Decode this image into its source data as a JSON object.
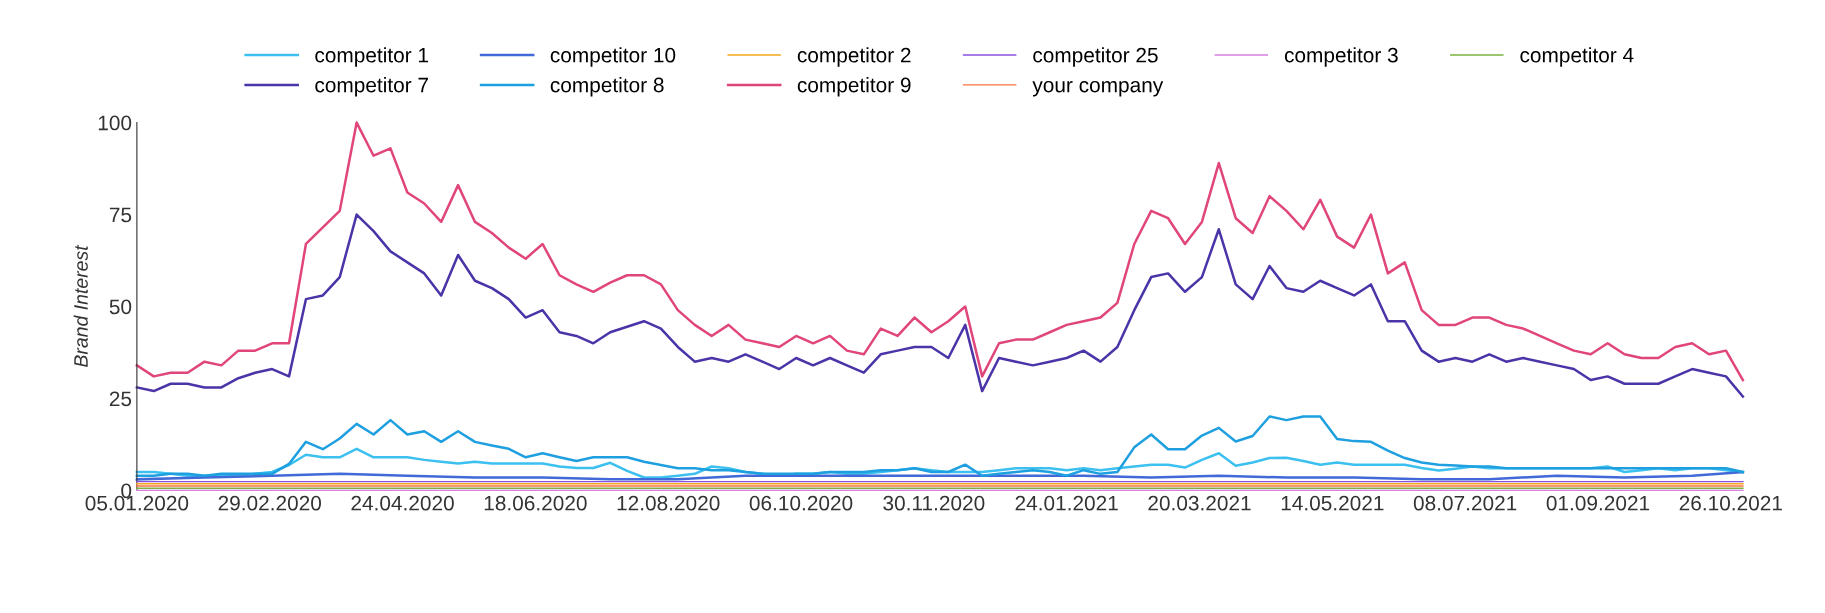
{
  "chart_data": {
    "type": "line",
    "ylabel": "Brand Interest",
    "x": [
      "2020-01-05",
      "2020-01-12",
      "2020-01-19",
      "2020-01-26",
      "2020-02-02",
      "2020-02-09",
      "2020-02-16",
      "2020-02-23",
      "2020-03-01",
      "2020-03-08",
      "2020-03-15",
      "2020-03-22",
      "2020-03-29",
      "2020-04-05",
      "2020-04-12",
      "2020-04-19",
      "2020-04-26",
      "2020-05-03",
      "2020-05-10",
      "2020-05-17",
      "2020-05-24",
      "2020-05-31",
      "2020-06-07",
      "2020-06-14",
      "2020-06-21",
      "2020-06-28",
      "2020-07-05",
      "2020-07-12",
      "2020-07-19",
      "2020-07-26",
      "2020-08-02",
      "2020-08-09",
      "2020-08-16",
      "2020-08-23",
      "2020-08-30",
      "2020-09-06",
      "2020-09-13",
      "2020-09-20",
      "2020-09-27",
      "2020-10-04",
      "2020-10-11",
      "2020-10-18",
      "2020-10-25",
      "2020-11-01",
      "2020-11-08",
      "2020-11-15",
      "2020-11-22",
      "2020-11-29",
      "2020-12-06",
      "2020-12-13",
      "2020-12-20",
      "2020-12-27",
      "2021-01-03",
      "2021-01-10",
      "2021-01-17",
      "2021-01-24",
      "2021-01-31",
      "2021-02-07",
      "2021-02-14",
      "2021-02-21",
      "2021-02-28",
      "2021-03-07",
      "2021-03-14",
      "2021-03-21",
      "2021-03-28",
      "2021-04-04",
      "2021-04-11",
      "2021-04-18",
      "2021-04-25",
      "2021-05-02",
      "2021-05-09",
      "2021-05-16",
      "2021-05-23",
      "2021-05-30",
      "2021-06-06",
      "2021-06-13",
      "2021-06-20",
      "2021-06-27",
      "2021-07-04",
      "2021-07-11",
      "2021-07-18",
      "2021-07-25",
      "2021-08-01",
      "2021-08-08",
      "2021-08-15",
      "2021-08-22",
      "2021-08-29",
      "2021-09-05",
      "2021-09-12",
      "2021-09-19",
      "2021-09-26",
      "2021-10-03",
      "2021-10-10",
      "2021-10-17",
      "2021-10-24",
      "2021-10-31"
    ],
    "series": [
      {
        "name": "competitor 1",
        "color": "#3cc0ef",
        "values": [
          5,
          5,
          4.5,
          4,
          4,
          4,
          4,
          4.5,
          5,
          6.9,
          9.7,
          9,
          9,
          11.3,
          9,
          9,
          9,
          8.3,
          7.8,
          7.3,
          7.8,
          7.3,
          7.3,
          7.3,
          7.3,
          6.5,
          6.1,
          6.1,
          7.5,
          5.3,
          3.5,
          3.5,
          4,
          4.5,
          6.5,
          6,
          5,
          4.5,
          4,
          4.5,
          4.5,
          5,
          4.5,
          4.5,
          5,
          5.5,
          6,
          5.5,
          5,
          5,
          5,
          5.5,
          6,
          6,
          6,
          5.5,
          6,
          5.5,
          6,
          6.5,
          7,
          7,
          6.2,
          8.3,
          10.1,
          6.7,
          7.6,
          8.8,
          8.9,
          8,
          7,
          7.6,
          7,
          7,
          7,
          7,
          6.1,
          5.4,
          5.9,
          6.5,
          6,
          6,
          6,
          6,
          6,
          6,
          6,
          6.5,
          5,
          5.5,
          6,
          5.5,
          6,
          6,
          5.5,
          5
        ]
      },
      {
        "name": "competitor 10",
        "color": "#4169d8",
        "x": [
          "2020-01-05",
          "2020-02-02",
          "2020-03-01",
          "2020-03-29",
          "2020-04-26",
          "2020-05-24",
          "2020-06-21",
          "2020-07-19",
          "2020-08-16",
          "2020-09-13",
          "2020-10-11",
          "2020-11-08",
          "2020-12-06",
          "2021-01-03",
          "2021-01-31",
          "2021-02-28",
          "2021-03-28",
          "2021-04-25",
          "2021-05-23",
          "2021-06-20",
          "2021-07-18",
          "2021-08-15",
          "2021-09-12",
          "2021-10-10",
          "2021-10-31"
        ],
        "values": [
          3,
          3.5,
          4,
          4.5,
          4,
          3.5,
          3.5,
          3,
          3,
          4,
          4,
          4,
          4,
          4,
          4,
          3.5,
          4,
          3.5,
          3.5,
          3,
          3,
          4,
          3.5,
          4,
          5
        ]
      },
      {
        "name": "competitor 2",
        "color": "#f4a81d",
        "x": [
          "2020-01-05",
          "2020-02-02",
          "2020-03-01",
          "2020-03-29",
          "2020-04-26",
          "2020-05-24",
          "2020-06-21",
          "2020-07-19",
          "2020-08-16",
          "2020-09-13",
          "2020-10-11",
          "2020-11-08",
          "2020-12-06",
          "2021-01-03",
          "2021-01-31",
          "2021-02-28",
          "2021-03-28",
          "2021-04-25",
          "2021-05-23",
          "2021-06-20",
          "2021-07-18",
          "2021-08-15",
          "2021-09-12",
          "2021-10-10",
          "2021-10-31"
        ],
        "values": [
          1.8,
          1.8,
          1.8,
          1.8,
          1.8,
          1.8,
          1.8,
          1.8,
          1.8,
          1.8,
          1.8,
          1.8,
          1.8,
          1.8,
          1.8,
          1.8,
          1.8,
          1.8,
          1.8,
          1.8,
          1.8,
          1.8,
          1.8,
          1.8,
          1.8
        ]
      },
      {
        "name": "competitor 25",
        "color": "#8a4fe0",
        "x": [
          "2020-01-05",
          "2020-02-02",
          "2020-03-01",
          "2020-03-29",
          "2020-04-26",
          "2020-05-24",
          "2020-06-21",
          "2020-07-19",
          "2020-08-16",
          "2020-09-13",
          "2020-10-11",
          "2020-11-08",
          "2020-12-06",
          "2021-01-03",
          "2021-01-31",
          "2021-02-28",
          "2021-03-28",
          "2021-04-25",
          "2021-05-23",
          "2021-06-20",
          "2021-07-18",
          "2021-08-15",
          "2021-09-12",
          "2021-10-10",
          "2021-10-31"
        ],
        "values": [
          2.4,
          2.4,
          2.4,
          2.4,
          2.4,
          2.4,
          2.4,
          2.4,
          2.4,
          2.4,
          2.4,
          2.4,
          2.4,
          2.4,
          2.4,
          2.4,
          2.4,
          2.4,
          2.4,
          2.4,
          2.4,
          2.4,
          2.4,
          2.4,
          2.4
        ]
      },
      {
        "name": "competitor 3",
        "color": "#d77fe3",
        "x": [
          "2020-01-05",
          "2020-02-02",
          "2020-03-01",
          "2020-03-29",
          "2020-04-26",
          "2020-05-24",
          "2020-06-21",
          "2020-07-19",
          "2020-08-16",
          "2020-09-13",
          "2020-10-11",
          "2020-11-08",
          "2020-12-06",
          "2021-01-03",
          "2021-01-31",
          "2021-02-28",
          "2021-03-28",
          "2021-04-25",
          "2021-05-23",
          "2021-06-20",
          "2021-07-18",
          "2021-08-15",
          "2021-09-12",
          "2021-10-10",
          "2021-10-31"
        ],
        "values": [
          0,
          0,
          0,
          0,
          0,
          0,
          0,
          0,
          0,
          0,
          0,
          0,
          0,
          0,
          0,
          0,
          0,
          0,
          0,
          0,
          0,
          0,
          0,
          0,
          0
        ]
      },
      {
        "name": "competitor 4",
        "color": "#7cb342",
        "x": [
          "2020-01-05",
          "2020-02-02",
          "2020-03-01",
          "2020-03-29",
          "2020-04-26",
          "2020-05-24",
          "2020-06-21",
          "2020-07-19",
          "2020-08-16",
          "2020-09-13",
          "2020-10-11",
          "2020-11-08",
          "2020-12-06",
          "2021-01-03",
          "2021-01-31",
          "2021-02-28",
          "2021-03-28",
          "2021-04-25",
          "2021-05-23",
          "2021-06-20",
          "2021-07-18",
          "2021-08-15",
          "2021-09-12",
          "2021-10-10",
          "2021-10-31"
        ],
        "values": [
          0.6,
          0.6,
          0.6,
          0.6,
          0.6,
          0.6,
          0.6,
          0.6,
          0.6,
          0.6,
          0.6,
          0.6,
          0.6,
          0.6,
          0.6,
          0.6,
          0.6,
          0.6,
          0.6,
          0.6,
          0.6,
          0.6,
          0.6,
          0.6,
          0.6
        ]
      },
      {
        "name": "competitor 7",
        "color": "#4b33a8",
        "values": [
          28,
          27,
          29,
          29,
          28,
          28,
          30.5,
          32,
          33,
          31,
          52,
          53,
          58,
          75,
          70.5,
          65,
          62,
          59,
          53,
          64,
          57,
          55,
          52,
          47,
          49,
          43,
          42,
          40,
          43,
          44.5,
          46,
          44,
          39,
          35,
          36,
          35,
          37,
          35,
          33,
          36,
          34,
          36,
          34,
          32,
          37,
          38,
          39,
          39,
          36,
          45,
          27,
          36,
          35,
          34,
          35,
          36,
          38,
          35,
          39,
          49,
          58,
          59,
          54,
          58,
          71,
          56,
          52,
          61,
          55,
          54,
          57,
          55,
          53,
          56,
          46,
          46,
          38,
          35,
          36,
          35,
          37,
          35,
          36,
          35,
          34,
          33,
          30,
          31,
          29,
          29,
          29,
          31,
          33,
          32,
          31,
          25.5
        ]
      },
      {
        "name": "competitor 8",
        "color": "#1e9fe0",
        "values": [
          4,
          4,
          4.5,
          4.5,
          4,
          4.5,
          4.5,
          4.5,
          4.5,
          7.2,
          13.2,
          11.2,
          14.1,
          18.1,
          15.2,
          19.1,
          15.2,
          16.1,
          13.2,
          16.1,
          13.2,
          12.2,
          11.3,
          9,
          10.1,
          9,
          8,
          9,
          9,
          9,
          7.8,
          6.9,
          6,
          6,
          5.5,
          5.5,
          5,
          4.5,
          4.5,
          4.5,
          4.5,
          5,
          5,
          5,
          5.5,
          5.5,
          6,
          5,
          5,
          7,
          4,
          4.5,
          5,
          5.5,
          5,
          4,
          5.5,
          4.5,
          5,
          11.7,
          15.2,
          11.2,
          11.2,
          14.9,
          17,
          13.3,
          14.8,
          20.1,
          19.1,
          20.1,
          20.1,
          14,
          13.4,
          13.2,
          10.8,
          8.8,
          7.6,
          7,
          6.8,
          6.5,
          6.5,
          6,
          6,
          6,
          6,
          6,
          6,
          6,
          6,
          6,
          6,
          6,
          6,
          6,
          6,
          5
        ]
      },
      {
        "name": "competitor 9",
        "color": "#e0457b",
        "values": [
          34,
          31,
          32,
          32,
          35,
          34,
          38,
          38,
          40,
          40,
          67,
          71.5,
          76,
          100,
          91,
          93,
          81,
          78,
          73,
          83,
          73,
          70,
          66,
          63,
          67,
          58.5,
          56,
          54,
          56.5,
          58.5,
          58.5,
          56,
          49,
          45,
          42,
          45,
          41,
          40,
          39,
          42,
          40,
          42,
          38,
          37,
          44,
          42,
          47,
          43,
          46,
          50,
          31,
          40,
          41,
          41,
          43,
          45,
          46,
          47,
          51,
          67,
          76,
          74,
          67,
          73,
          89,
          74,
          70,
          80,
          76,
          71,
          79,
          69,
          66,
          75,
          59,
          62,
          49,
          45,
          45,
          47,
          47,
          45,
          44,
          42,
          40,
          38,
          37,
          40,
          37,
          36,
          36,
          39,
          40,
          37,
          38,
          30
        ]
      },
      {
        "name": "your company",
        "color": "#ff7043",
        "x": [
          "2020-01-05",
          "2020-02-02",
          "2020-03-01",
          "2020-03-29",
          "2020-04-26",
          "2020-05-24",
          "2020-06-21",
          "2020-07-19",
          "2020-08-16",
          "2020-09-13",
          "2020-10-11",
          "2020-11-08",
          "2020-12-06",
          "2021-01-03",
          "2021-01-31",
          "2021-02-28",
          "2021-03-28",
          "2021-04-25",
          "2021-05-23",
          "2021-06-20",
          "2021-07-18",
          "2021-08-15",
          "2021-09-12",
          "2021-10-10",
          "2021-10-31"
        ],
        "values": [
          1.2,
          1.2,
          1.2,
          1.2,
          1.2,
          1.2,
          1.2,
          1.2,
          1.2,
          1.2,
          1.2,
          1.2,
          1.2,
          1.2,
          1.2,
          1.2,
          1.2,
          1.2,
          1.2,
          1.2,
          1.2,
          1.2,
          1.2,
          1.2,
          1.2
        ]
      }
    ],
    "xlim": [
      "2020-01-05",
      "2021-10-31"
    ],
    "xticks": [
      {
        "value": "2020-01-05",
        "label": "05.01.2020"
      },
      {
        "value": "2020-02-29",
        "label": "29.02.2020"
      },
      {
        "value": "2020-04-24",
        "label": "24.04.2020"
      },
      {
        "value": "2020-06-18",
        "label": "18.06.2020"
      },
      {
        "value": "2020-08-12",
        "label": "12.08.2020"
      },
      {
        "value": "2020-10-06",
        "label": "06.10.2020"
      },
      {
        "value": "2020-11-30",
        "label": "30.11.2020"
      },
      {
        "value": "2021-01-24",
        "label": "24.01.2021"
      },
      {
        "value": "2021-03-20",
        "label": "20.03.2021"
      },
      {
        "value": "2021-05-14",
        "label": "14.05.2021"
      },
      {
        "value": "2021-07-08",
        "label": "08.07.2021"
      },
      {
        "value": "2021-09-01",
        "label": "01.09.2021"
      },
      {
        "value": "2021-10-26",
        "label": "26.10.2021"
      }
    ],
    "ylim": [
      0,
      100
    ],
    "yticks": [
      0,
      25,
      50,
      75,
      100
    ],
    "grid": false,
    "legend": "top",
    "marker": "none",
    "line_style": "solid"
  }
}
